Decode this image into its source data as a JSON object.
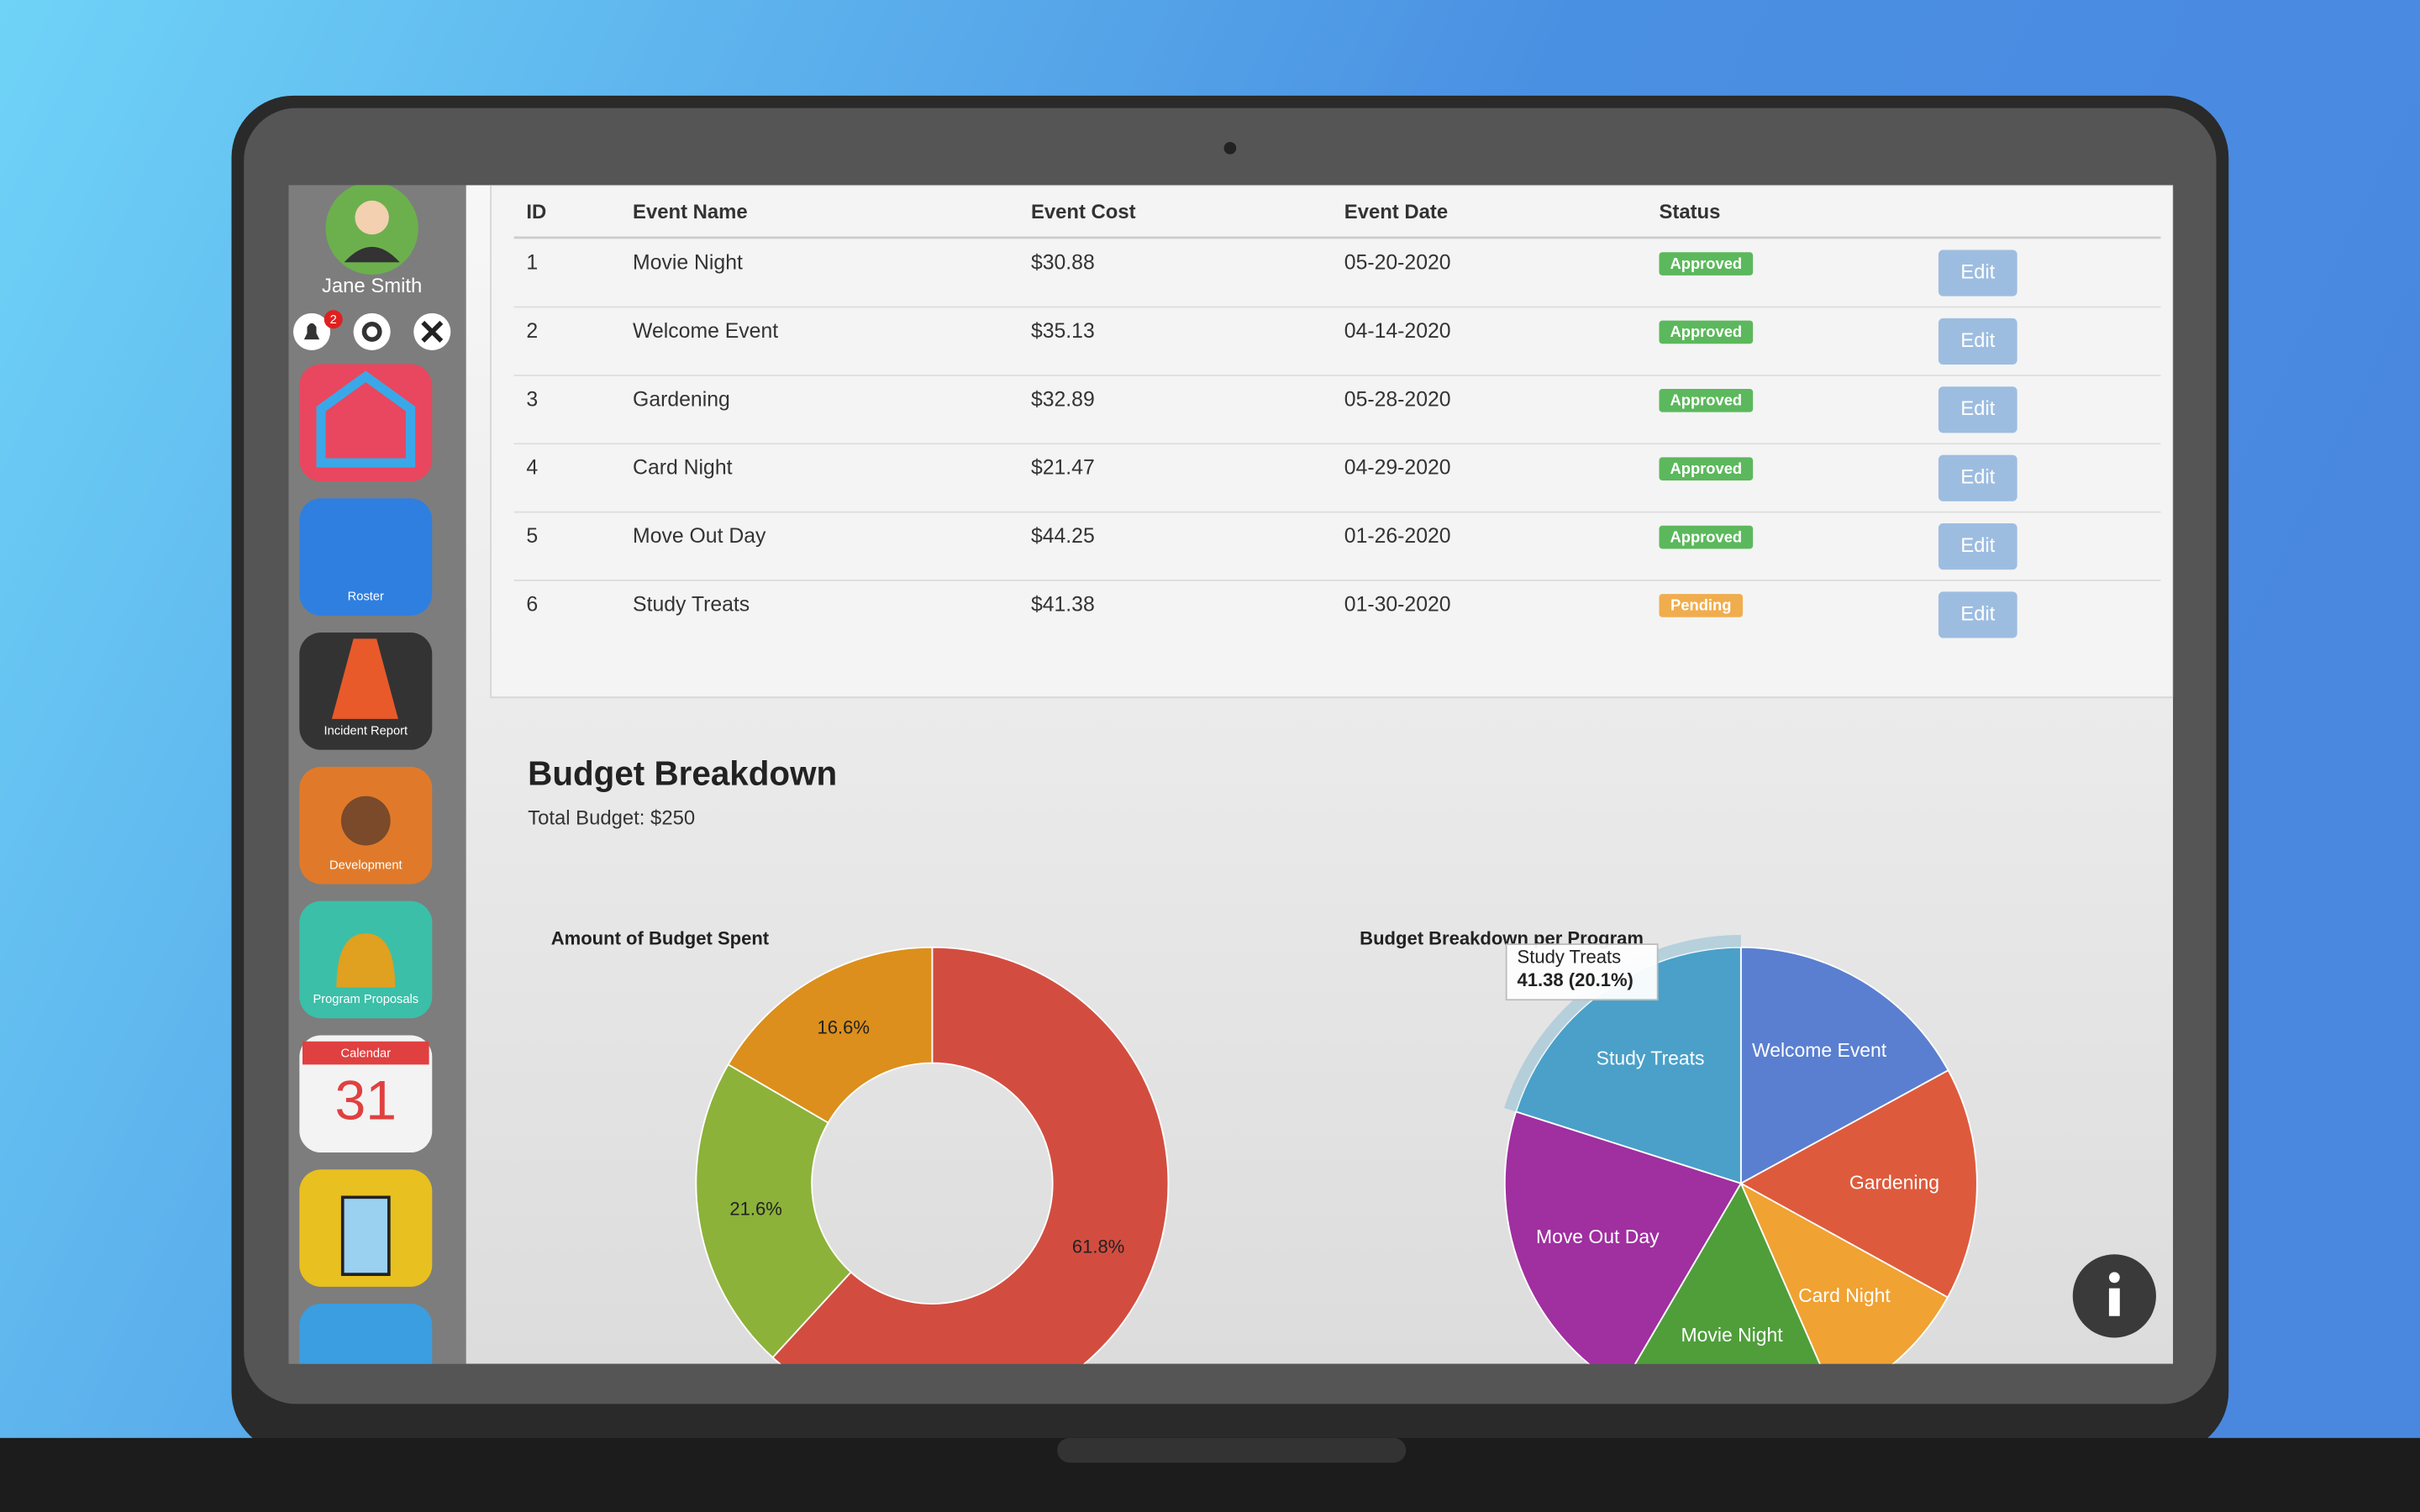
{
  "user": {
    "name": "Jane Smith",
    "notifications": "2"
  },
  "apps": [
    "Roster",
    "Incident Report",
    "Development",
    "Program Proposals",
    "Calendar"
  ],
  "calendar_day": "31",
  "table": {
    "columns": [
      "ID",
      "Event Name",
      "Event Cost",
      "Event Date",
      "Status"
    ],
    "rows": [
      [
        "1",
        "Movie Night",
        "$30.88",
        "05-20-2020",
        "Approved"
      ],
      [
        "2",
        "Welcome Event",
        "$35.13",
        "04-14-2020",
        "Approved"
      ],
      [
        "3",
        "Gardening",
        "$32.89",
        "05-28-2020",
        "Approved"
      ],
      [
        "4",
        "Card Night",
        "$21.47",
        "04-29-2020",
        "Approved"
      ],
      [
        "5",
        "Move Out Day",
        "$44.25",
        "01-26-2020",
        "Approved"
      ],
      [
        "6",
        "Study Treats",
        "$41.38",
        "01-30-2020",
        "Pending"
      ]
    ],
    "action": "Edit",
    "status_colors": {
      "Approved": "#5cb85c",
      "Pending": "#f0ad4e"
    }
  },
  "budget": {
    "title": "Budget Breakdown",
    "total": "Total Budget: $250"
  },
  "chart_data": [
    {
      "type": "donut",
      "title": "Amount of Budget Spent",
      "values": [
        61.8,
        21.6,
        16.6
      ],
      "value_labels": [
        "61.8%",
        "21.6%",
        "16.6%"
      ],
      "colors": [
        "#d24d40",
        "#8cb23a",
        "#dc8f1c"
      ]
    },
    {
      "type": "pie",
      "title": "Budget Breakdown per Program",
      "categories": [
        "Welcome Event",
        "Gardening",
        "Card Night",
        "Movie Night",
        "Move Out Day",
        "Study Treats"
      ],
      "values": [
        35.13,
        32.89,
        21.47,
        30.88,
        44.25,
        41.38
      ],
      "colors": [
        "#5a7fd0",
        "#de5a3c",
        "#f0a232",
        "#4f9e3a",
        "#a02fa0",
        "#4aa0c8"
      ],
      "tooltip": {
        "name": "Study Treats",
        "text": "41.38 (20.1%)"
      }
    }
  ]
}
